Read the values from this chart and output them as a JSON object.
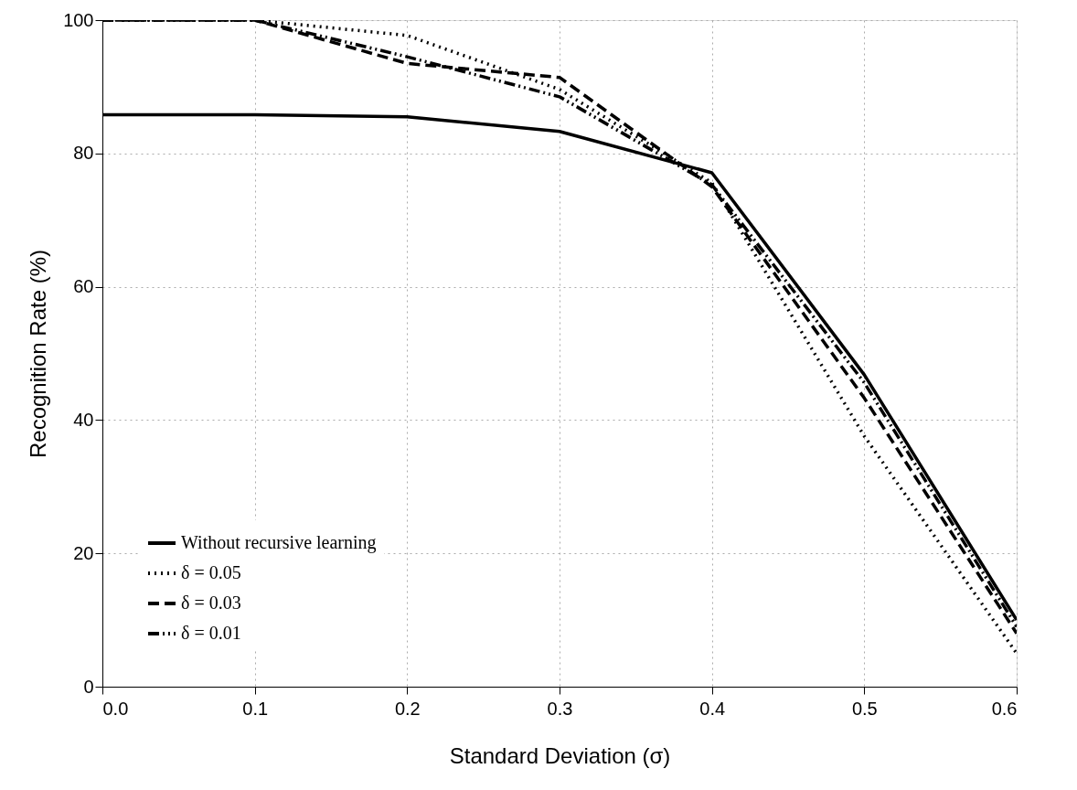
{
  "chart_data": {
    "type": "line",
    "xlabel": "Standard Deviation (σ)",
    "ylabel": "Recognition Rate (%)",
    "x": [
      0.0,
      0.1,
      0.2,
      0.3,
      0.4,
      0.5,
      0.6
    ],
    "series": [
      {
        "name": "Without recursive learning",
        "color": "#000000",
        "line_style": "solid",
        "values": [
          85.8,
          85.8,
          85.5,
          83.3,
          77.1,
          46.8,
          10
        ]
      },
      {
        "name": "δ = 0.05",
        "color": "#000000",
        "line_style": "dotted",
        "values": [
          100,
          100,
          97.7,
          89.6,
          75.6,
          37.6,
          5
        ]
      },
      {
        "name": "δ = 0.03",
        "color": "#000000",
        "line_style": "dashed",
        "values": [
          100,
          100,
          93.5,
          91.4,
          75,
          43.3,
          8
        ]
      },
      {
        "name": "δ = 0.01",
        "color": "#000000",
        "line_style": "dashdotdot",
        "values": [
          100,
          100,
          94.5,
          88.5,
          75.3,
          45.6,
          9
        ]
      }
    ],
    "xlim": [
      0,
      0.6
    ],
    "xticks": [
      {
        "value": 0,
        "label": "0.0"
      },
      0.1,
      0.2,
      0.3,
      0.4,
      0.5,
      0.6
    ],
    "ylim": [
      0,
      100
    ],
    "yticks": [
      0,
      20,
      40,
      60,
      80,
      100
    ],
    "grid": true,
    "legend": "bottom left",
    "marker": "none"
  }
}
